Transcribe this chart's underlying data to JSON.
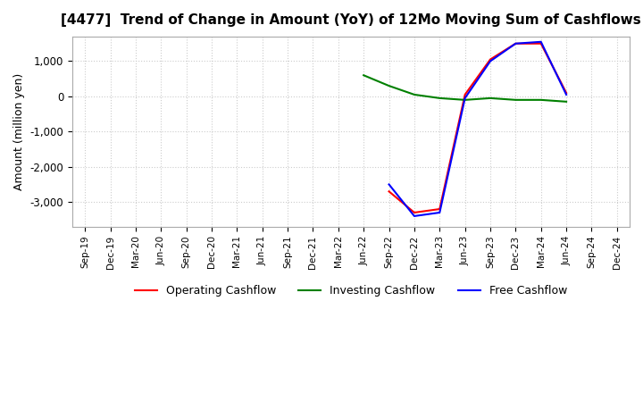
{
  "title": "[4477]  Trend of Change in Amount (YoY) of 12Mo Moving Sum of Cashflows",
  "ylabel": "Amount (million yen)",
  "background_color": "#ffffff",
  "grid_color": "#cccccc",
  "x_labels": [
    "Sep-19",
    "Dec-19",
    "Mar-20",
    "Jun-20",
    "Sep-20",
    "Dec-20",
    "Mar-21",
    "Jun-21",
    "Sep-21",
    "Dec-21",
    "Mar-22",
    "Jun-22",
    "Sep-22",
    "Dec-22",
    "Mar-23",
    "Jun-23",
    "Sep-23",
    "Dec-23",
    "Mar-24",
    "Jun-24",
    "Sep-24",
    "Dec-24"
  ],
  "operating_cashflow": [
    null,
    null,
    null,
    null,
    null,
    null,
    null,
    null,
    null,
    null,
    null,
    null,
    -2700,
    -3300,
    -3200,
    50,
    1050,
    1500,
    1500,
    100,
    null,
    null
  ],
  "investing_cashflow": [
    null,
    null,
    null,
    null,
    null,
    null,
    null,
    null,
    null,
    null,
    null,
    600,
    300,
    50,
    -50,
    -100,
    -50,
    -100,
    -100,
    -150,
    null,
    null
  ],
  "free_cashflow": [
    null,
    null,
    null,
    null,
    null,
    null,
    null,
    null,
    null,
    null,
    null,
    null,
    -2500,
    -3400,
    -3300,
    -50,
    1000,
    1500,
    1550,
    50,
    null,
    null
  ],
  "ylim": [
    -3700,
    1700
  ],
  "yticks": [
    -3000,
    -2000,
    -1000,
    0,
    1000
  ],
  "line_colors": {
    "operating": "#ff0000",
    "investing": "#008000",
    "free": "#0000ff"
  },
  "legend_labels": [
    "Operating Cashflow",
    "Investing Cashflow",
    "Free Cashflow"
  ]
}
